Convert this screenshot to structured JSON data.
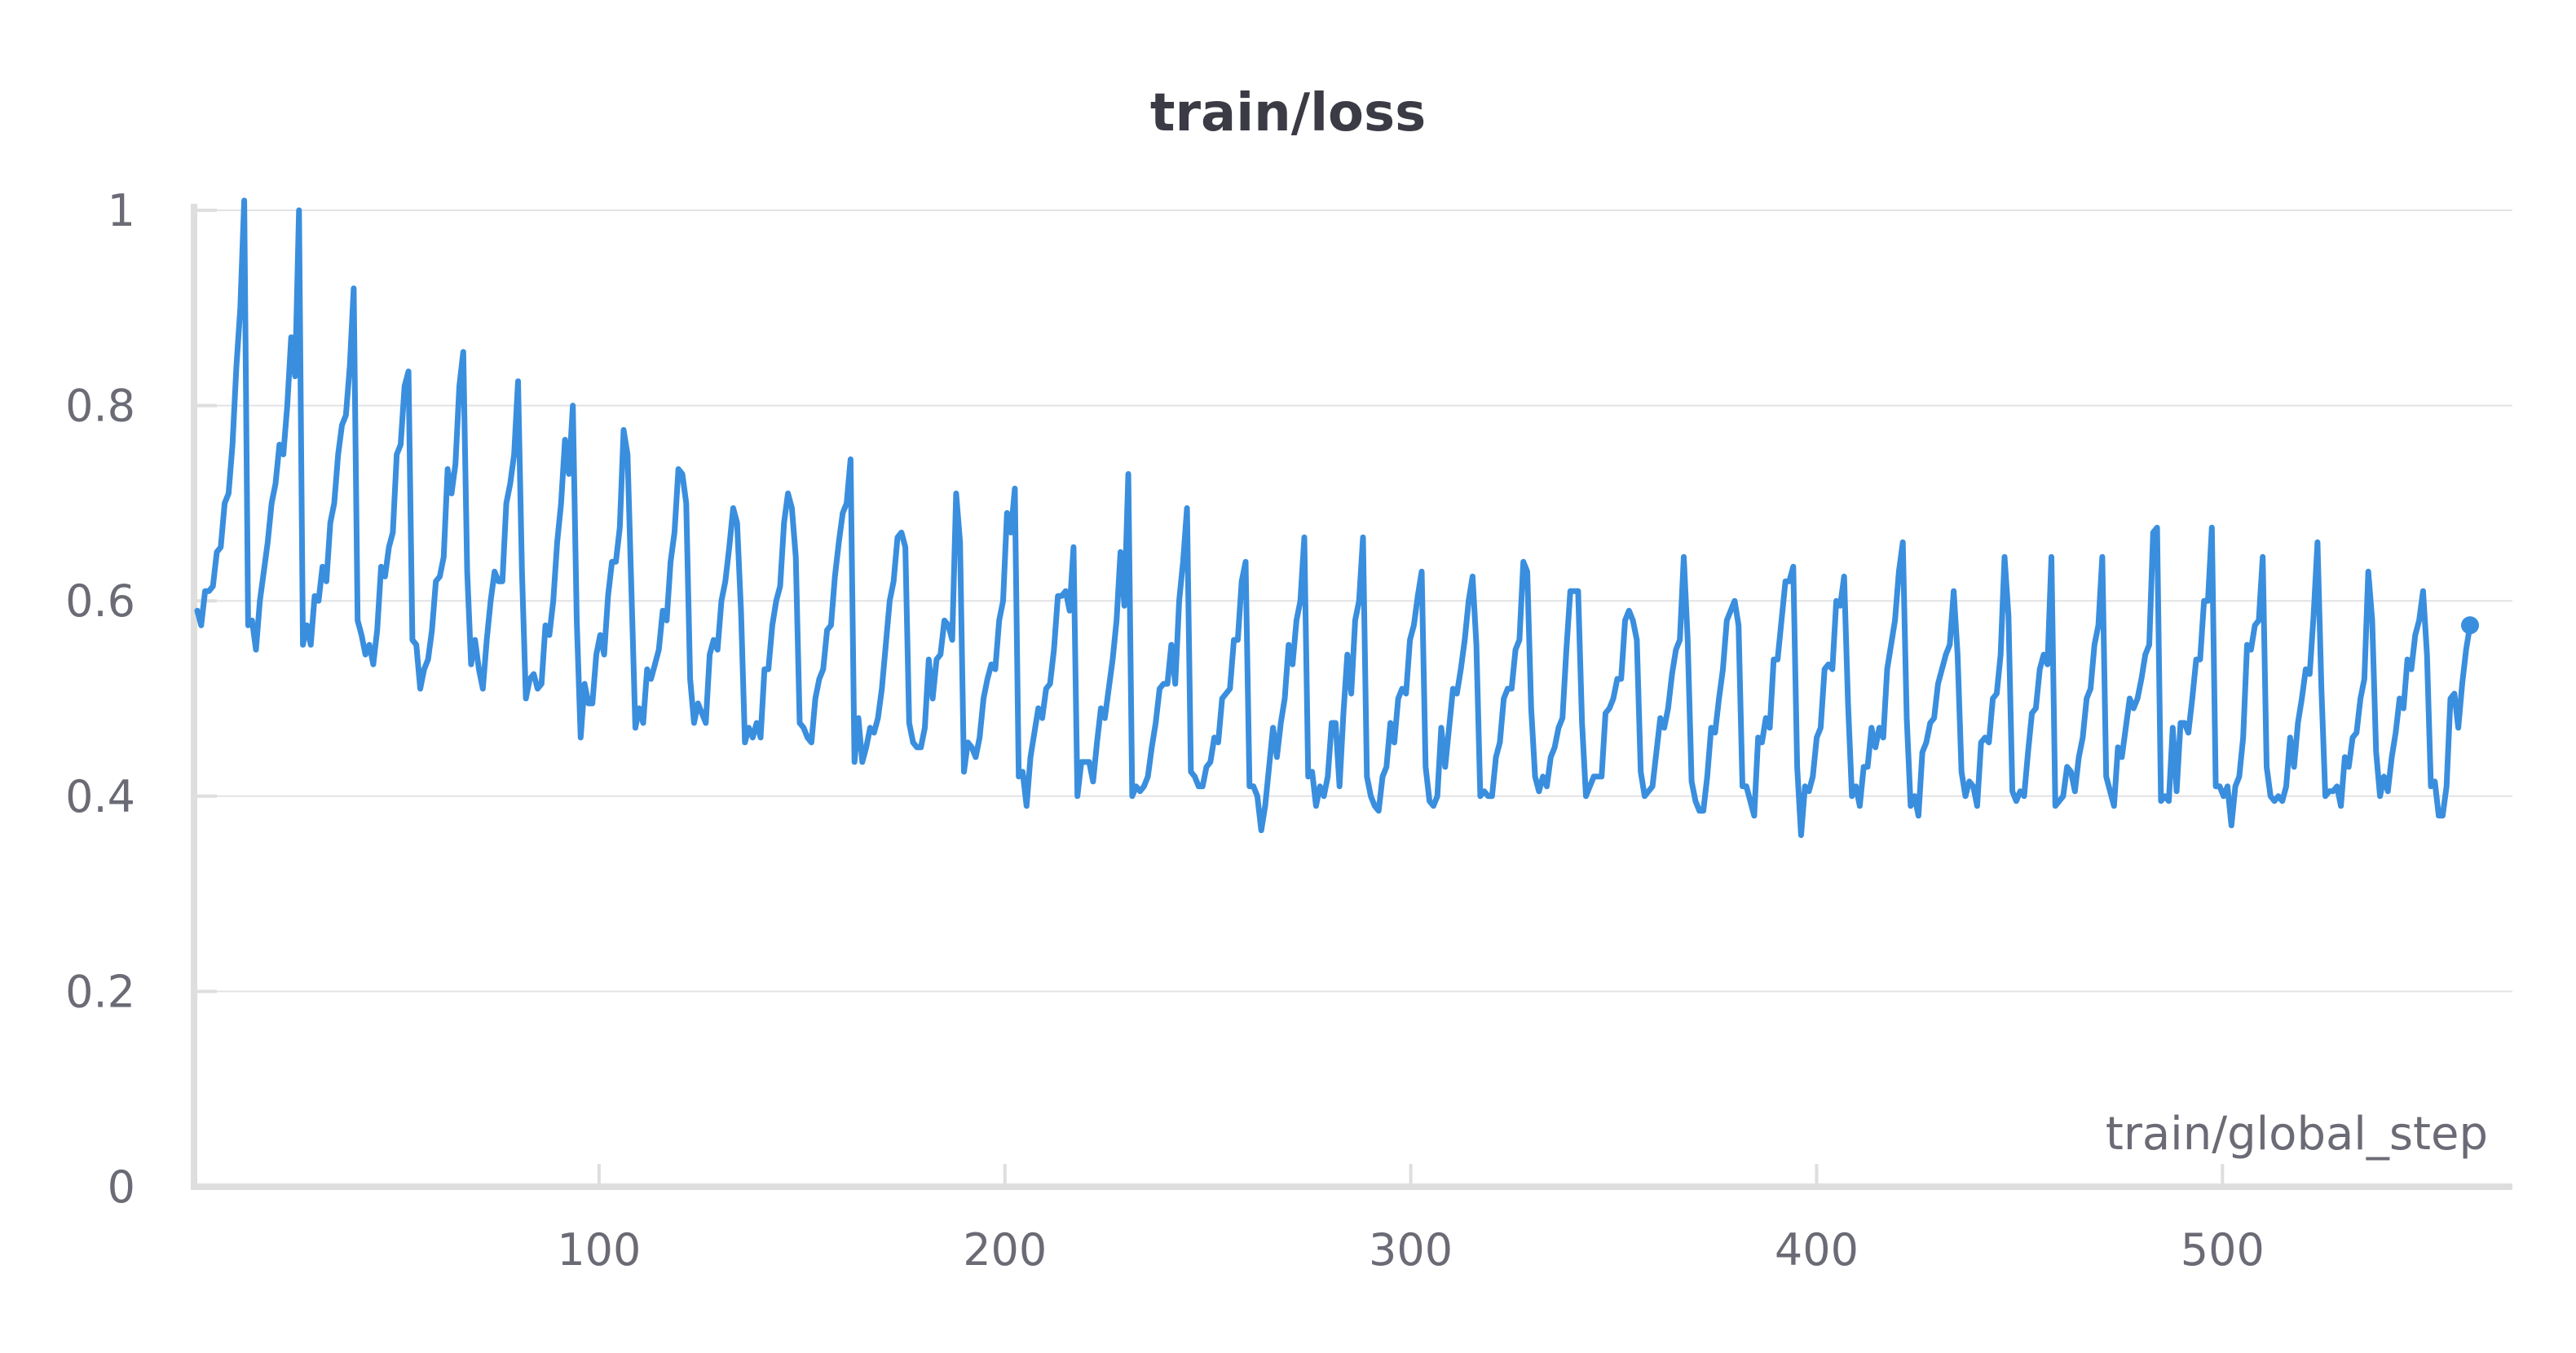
{
  "chart_data": {
    "type": "line",
    "title": "train/loss",
    "xlabel": "train/global_step",
    "ylabel": "",
    "xlim": [
      1,
      561
    ],
    "ylim": [
      0,
      1
    ],
    "x_ticks": [
      100,
      200,
      300,
      400,
      500
    ],
    "y_ticks": [
      0,
      0.2,
      0.4,
      0.6,
      0.8,
      1
    ],
    "y_tick_labels": [
      "0",
      "0.2",
      "0.4",
      "0.6",
      "0.8",
      "1"
    ],
    "grid": "horizontal",
    "colors": {
      "series": "#3a8ede"
    },
    "series": [
      {
        "values": [
          0.59,
          0.575,
          0.61,
          0.61,
          0.615,
          0.65,
          0.655,
          0.7,
          0.71,
          0.76,
          0.84,
          0.9,
          1.01,
          0.575,
          0.58,
          0.55,
          0.6,
          0.63,
          0.66,
          0.7,
          0.72,
          0.76,
          0.75,
          0.8,
          0.87,
          0.83,
          1.0,
          0.555,
          0.575,
          0.555,
          0.605,
          0.6,
          0.635,
          0.62,
          0.68,
          0.7,
          0.75,
          0.78,
          0.79,
          0.84,
          0.92,
          0.58,
          0.565,
          0.545,
          0.555,
          0.535,
          0.57,
          0.635,
          0.625,
          0.655,
          0.67,
          0.75,
          0.76,
          0.82,
          0.835,
          0.56,
          0.555,
          0.51,
          0.53,
          0.54,
          0.57,
          0.62,
          0.625,
          0.645,
          0.735,
          0.71,
          0.74,
          0.82,
          0.855,
          0.63,
          0.535,
          0.56,
          0.53,
          0.51,
          0.56,
          0.6,
          0.63,
          0.62,
          0.62,
          0.7,
          0.72,
          0.75,
          0.825,
          0.63,
          0.5,
          0.52,
          0.525,
          0.51,
          0.515,
          0.575,
          0.565,
          0.6,
          0.66,
          0.7,
          0.765,
          0.73,
          0.8,
          0.58,
          0.46,
          0.515,
          0.495,
          0.495,
          0.545,
          0.565,
          0.545,
          0.605,
          0.64,
          0.64,
          0.675,
          0.775,
          0.75,
          0.61,
          0.47,
          0.49,
          0.475,
          0.53,
          0.52,
          0.535,
          0.55,
          0.59,
          0.58,
          0.64,
          0.67,
          0.735,
          0.73,
          0.7,
          0.52,
          0.475,
          0.495,
          0.485,
          0.475,
          0.545,
          0.56,
          0.55,
          0.6,
          0.62,
          0.655,
          0.695,
          0.68,
          0.59,
          0.455,
          0.47,
          0.46,
          0.475,
          0.46,
          0.53,
          0.53,
          0.575,
          0.6,
          0.615,
          0.68,
          0.71,
          0.695,
          0.645,
          0.475,
          0.47,
          0.46,
          0.455,
          0.5,
          0.52,
          0.53,
          0.57,
          0.575,
          0.625,
          0.66,
          0.69,
          0.7,
          0.745,
          0.435,
          0.48,
          0.435,
          0.45,
          0.47,
          0.465,
          0.48,
          0.51,
          0.555,
          0.6,
          0.62,
          0.665,
          0.67,
          0.655,
          0.475,
          0.455,
          0.45,
          0.45,
          0.47,
          0.54,
          0.5,
          0.54,
          0.545,
          0.58,
          0.575,
          0.56,
          0.71,
          0.66,
          0.425,
          0.455,
          0.45,
          0.44,
          0.46,
          0.5,
          0.52,
          0.535,
          0.53,
          0.58,
          0.6,
          0.69,
          0.67,
          0.715,
          0.42,
          0.425,
          0.39,
          0.44,
          0.465,
          0.49,
          0.48,
          0.51,
          0.515,
          0.55,
          0.605,
          0.605,
          0.61,
          0.59,
          0.655,
          0.4,
          0.435,
          0.435,
          0.435,
          0.415,
          0.455,
          0.49,
          0.48,
          0.51,
          0.54,
          0.58,
          0.65,
          0.595,
          0.73,
          0.4,
          0.41,
          0.405,
          0.41,
          0.42,
          0.45,
          0.475,
          0.51,
          0.515,
          0.515,
          0.555,
          0.515,
          0.6,
          0.64,
          0.695,
          0.425,
          0.42,
          0.41,
          0.41,
          0.43,
          0.435,
          0.46,
          0.455,
          0.5,
          0.505,
          0.51,
          0.56,
          0.56,
          0.62,
          0.64,
          0.41,
          0.41,
          0.4,
          0.365,
          0.39,
          0.43,
          0.47,
          0.44,
          0.475,
          0.5,
          0.555,
          0.535,
          0.58,
          0.6,
          0.665,
          0.42,
          0.425,
          0.39,
          0.41,
          0.4,
          0.42,
          0.475,
          0.475,
          0.41,
          0.485,
          0.545,
          0.505,
          0.58,
          0.6,
          0.665,
          0.42,
          0.4,
          0.39,
          0.385,
          0.42,
          0.43,
          0.475,
          0.455,
          0.5,
          0.51,
          0.505,
          0.56,
          0.575,
          0.605,
          0.63,
          0.43,
          0.395,
          0.39,
          0.4,
          0.47,
          0.43,
          0.47,
          0.51,
          0.505,
          0.53,
          0.56,
          0.6,
          0.625,
          0.555,
          0.4,
          0.405,
          0.4,
          0.4,
          0.44,
          0.455,
          0.5,
          0.51,
          0.51,
          0.55,
          0.56,
          0.64,
          0.63,
          0.49,
          0.42,
          0.405,
          0.42,
          0.41,
          0.44,
          0.45,
          0.47,
          0.48,
          0.55,
          0.61,
          0.61,
          0.61,
          0.475,
          0.4,
          0.41,
          0.42,
          0.42,
          0.42,
          0.485,
          0.49,
          0.5,
          0.52,
          0.52,
          0.58,
          0.59,
          0.58,
          0.56,
          0.425,
          0.4,
          0.405,
          0.41,
          0.445,
          0.48,
          0.47,
          0.49,
          0.525,
          0.55,
          0.56,
          0.645,
          0.56,
          0.415,
          0.395,
          0.385,
          0.385,
          0.42,
          0.47,
          0.465,
          0.5,
          0.53,
          0.58,
          0.59,
          0.6,
          0.575,
          0.41,
          0.41,
          0.395,
          0.38,
          0.46,
          0.455,
          0.48,
          0.47,
          0.54,
          0.54,
          0.58,
          0.62,
          0.62,
          0.635,
          0.43,
          0.36,
          0.41,
          0.405,
          0.42,
          0.46,
          0.47,
          0.53,
          0.535,
          0.53,
          0.6,
          0.595,
          0.625,
          0.495,
          0.4,
          0.41,
          0.39,
          0.43,
          0.43,
          0.47,
          0.45,
          0.47,
          0.46,
          0.53,
          0.555,
          0.58,
          0.63,
          0.66,
          0.48,
          0.39,
          0.4,
          0.38,
          0.445,
          0.455,
          0.475,
          0.48,
          0.515,
          0.53,
          0.545,
          0.555,
          0.61,
          0.545,
          0.425,
          0.4,
          0.415,
          0.41,
          0.39,
          0.455,
          0.46,
          0.455,
          0.5,
          0.505,
          0.545,
          0.645,
          0.585,
          0.405,
          0.395,
          0.405,
          0.4,
          0.445,
          0.485,
          0.49,
          0.53,
          0.545,
          0.535,
          0.645,
          0.39,
          0.395,
          0.4,
          0.43,
          0.425,
          0.405,
          0.44,
          0.46,
          0.5,
          0.51,
          0.555,
          0.575,
          0.645,
          0.42,
          0.405,
          0.39,
          0.45,
          0.44,
          0.47,
          0.5,
          0.49,
          0.5,
          0.52,
          0.545,
          0.555,
          0.67,
          0.675,
          0.395,
          0.4,
          0.395,
          0.47,
          0.405,
          0.475,
          0.475,
          0.465,
          0.5,
          0.54,
          0.54,
          0.6,
          0.6,
          0.675,
          0.41,
          0.41,
          0.4,
          0.41,
          0.37,
          0.41,
          0.42,
          0.46,
          0.555,
          0.55,
          0.575,
          0.58,
          0.645,
          0.43,
          0.4,
          0.395,
          0.4,
          0.395,
          0.41,
          0.46,
          0.43,
          0.475,
          0.5,
          0.53,
          0.525,
          0.585,
          0.66,
          0.51,
          0.4,
          0.405,
          0.405,
          0.41,
          0.39,
          0.44,
          0.43,
          0.46,
          0.465,
          0.5,
          0.52,
          0.63,
          0.58,
          0.445,
          0.4,
          0.42,
          0.405,
          0.44,
          0.465,
          0.5,
          0.49,
          0.54,
          0.53,
          0.565,
          0.58,
          0.61,
          0.545,
          0.41,
          0.415,
          0.38,
          0.38,
          0.41,
          0.5,
          0.505,
          0.47,
          0.515,
          0.55,
          0.575
        ]
      }
    ]
  }
}
